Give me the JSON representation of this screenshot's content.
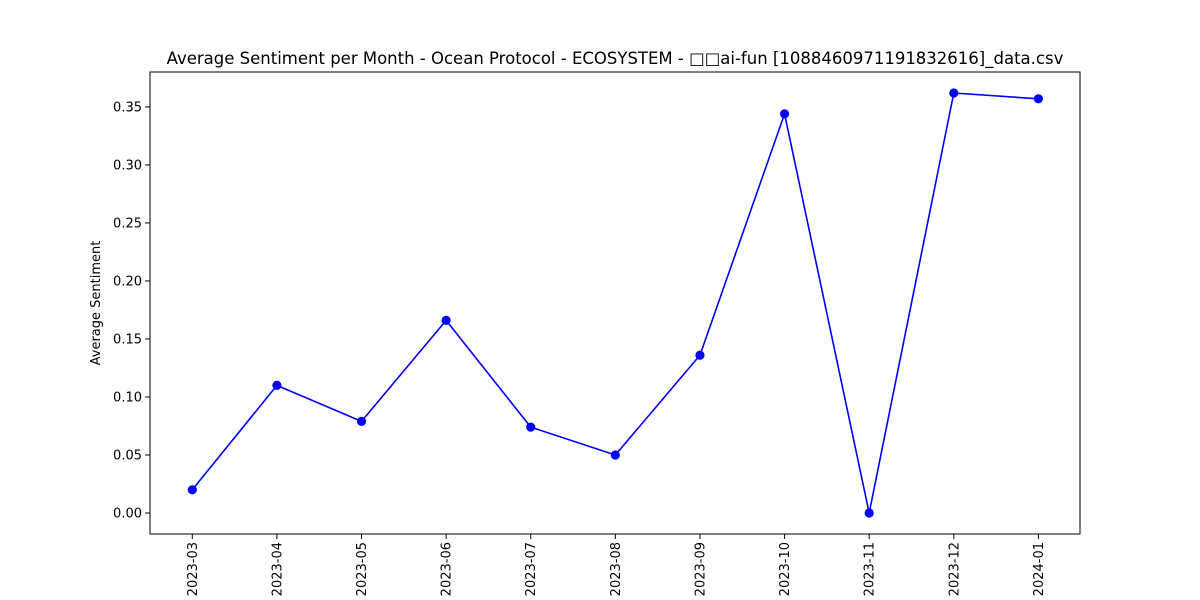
{
  "chart_data": {
    "type": "line",
    "title": "Average Sentiment per Month - Ocean Protocol - ECOSYSTEM - □□ai-fun [1088460971191832616]_data.csv",
    "xlabel": "",
    "ylabel": "Average Sentiment",
    "categories": [
      "2023-03",
      "2023-04",
      "2023-05",
      "2023-06",
      "2023-07",
      "2023-08",
      "2023-09",
      "2023-10",
      "2023-11",
      "2023-12",
      "2024-01"
    ],
    "series": [
      {
        "values": [
          0.02,
          0.11,
          0.079,
          0.166,
          0.074,
          0.05,
          0.136,
          0.344,
          0.0,
          0.362,
          0.357
        ],
        "color": "#0000ff",
        "marker": "circle"
      }
    ],
    "ylim": [
      -0.0181,
      0.3801
    ],
    "yticks": [
      0.0,
      0.05,
      0.1,
      0.15,
      0.2,
      0.25,
      0.3,
      0.35
    ],
    "ytick_labels": [
      "0.00",
      "0.05",
      "0.10",
      "0.15",
      "0.20",
      "0.25",
      "0.30",
      "0.35"
    ],
    "grid": false,
    "legend": "none"
  }
}
